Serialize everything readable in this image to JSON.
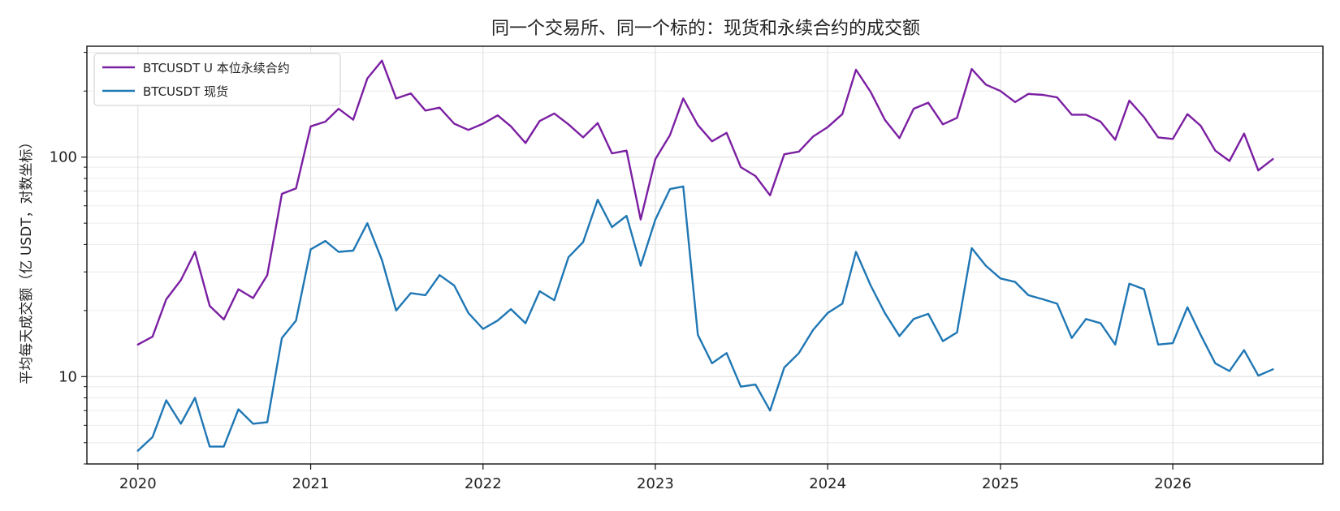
{
  "chart_data": {
    "type": "line",
    "title": "同一个交易所、同一个标的：现货和永续合约的成交额",
    "xlabel": "",
    "ylabel": "平均每天成交额（亿 USDT，对数坐标）",
    "yscale": "log",
    "ylim": [
      4.0,
      320
    ],
    "xlim": [
      "2019-09-15",
      "2026-11-15"
    ],
    "y_ticks": [
      10,
      100
    ],
    "y_tick_labels": [
      "10",
      "100"
    ],
    "x_tick_labels": [
      "2020",
      "2021",
      "2022",
      "2023",
      "2024",
      "2025",
      "2026"
    ],
    "grid": true,
    "legend_position": "upper-left",
    "x": [
      "2020-01",
      "2020-02",
      "2020-03",
      "2020-04",
      "2020-05",
      "2020-06",
      "2020-07",
      "2020-08",
      "2020-09",
      "2020-10",
      "2020-11",
      "2020-12",
      "2021-01",
      "2021-02",
      "2021-03",
      "2021-04",
      "2021-05",
      "2021-06",
      "2021-07",
      "2021-08",
      "2021-09",
      "2021-10",
      "2021-11",
      "2021-12",
      "2022-01",
      "2022-02",
      "2022-03",
      "2022-04",
      "2022-05",
      "2022-06",
      "2022-07",
      "2022-08",
      "2022-09",
      "2022-10",
      "2022-11",
      "2022-12",
      "2023-01",
      "2023-02",
      "2023-03",
      "2023-04",
      "2023-05",
      "2023-06",
      "2023-07",
      "2023-08",
      "2023-09",
      "2023-10",
      "2023-11",
      "2023-12",
      "2024-01",
      "2024-02",
      "2024-03",
      "2024-04",
      "2024-05",
      "2024-06",
      "2024-07",
      "2024-08",
      "2024-09",
      "2024-10",
      "2024-11",
      "2024-12",
      "2025-01",
      "2025-02",
      "2025-03",
      "2025-04",
      "2025-05",
      "2025-06",
      "2025-07",
      "2025-08",
      "2025-09",
      "2025-10",
      "2025-11",
      "2025-12",
      "2026-01",
      "2026-02",
      "2026-03",
      "2026-04",
      "2026-05",
      "2026-06",
      "2026-07",
      "2026-08"
    ],
    "series": [
      {
        "name": "BTCUSDT U 本位永续合约",
        "color": "#7b1fa2",
        "values": [
          14.0,
          15.2,
          22.5,
          27.5,
          37.0,
          21.0,
          18.2,
          25.0,
          22.8,
          29.0,
          68.0,
          72.0,
          138,
          145,
          166,
          148,
          228,
          275,
          185,
          195,
          163,
          168,
          142,
          133,
          142,
          155,
          138,
          116,
          146,
          158,
          141,
          123,
          143,
          104,
          107,
          52,
          98,
          126,
          185,
          140,
          118,
          129,
          90,
          82,
          67,
          103,
          106,
          124,
          137,
          157,
          250,
          198,
          148,
          122,
          166,
          177,
          141,
          151,
          252,
          214,
          200,
          178,
          194,
          192,
          187,
          156,
          156,
          145,
          120,
          181,
          152,
          123,
          121,
          157,
          139,
          107,
          96,
          128,
          87,
          98
        ]
      },
      {
        "name": "BTCUSDT 现货",
        "color": "#1f77b4",
        "values": [
          4.6,
          5.3,
          7.8,
          6.1,
          8.0,
          4.8,
          4.8,
          7.1,
          6.1,
          6.2,
          15.0,
          18.0,
          38.0,
          41.5,
          37.0,
          37.5,
          50.0,
          34.0,
          20.0,
          24.0,
          23.5,
          29.0,
          26.0,
          19.5,
          16.5,
          18.0,
          20.3,
          17.5,
          24.5,
          22.3,
          35.0,
          41.0,
          64.0,
          48.0,
          54.0,
          32.0,
          52.0,
          71.5,
          73.5,
          15.5,
          11.5,
          12.8,
          9.0,
          9.2,
          7.0,
          11.0,
          12.8,
          16.3,
          19.5,
          21.5,
          37.0,
          26.0,
          19.5,
          15.3,
          18.3,
          19.3,
          14.5,
          15.9,
          38.5,
          32.0,
          28.0,
          27.0,
          23.5,
          22.5,
          21.5,
          15.0,
          18.3,
          17.5,
          14.0,
          26.5,
          25.0,
          14.0,
          14.2,
          20.7,
          15.5,
          11.5,
          10.6,
          13.2,
          10.1,
          10.8
        ]
      }
    ]
  }
}
